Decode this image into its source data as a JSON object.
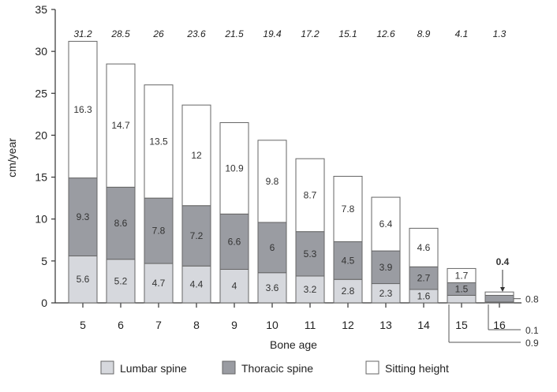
{
  "chart_data": {
    "type": "bar",
    "stacked": true,
    "categories": [
      "5",
      "6",
      "7",
      "8",
      "9",
      "10",
      "11",
      "12",
      "13",
      "14",
      "15",
      "16"
    ],
    "totals": [
      "31.2",
      "28.5",
      "26",
      "23.6",
      "21.5",
      "19.4",
      "17.2",
      "15.1",
      "12.6",
      "8.9",
      "4.1",
      "1.3"
    ],
    "series": [
      {
        "name": "Lumbar spine",
        "color": "#d6d8dd",
        "values": [
          5.6,
          5.2,
          4.7,
          4.4,
          4,
          3.6,
          3.2,
          2.8,
          2.3,
          1.6,
          0.9,
          0.1
        ],
        "labels": [
          "5.6",
          "5.2",
          "4.7",
          "4.4",
          "4",
          "3.6",
          "3.2",
          "2.8",
          "2.3",
          "1.6",
          "",
          ""
        ]
      },
      {
        "name": "Thoracic spine",
        "color": "#9a9ca2",
        "values": [
          9.3,
          8.6,
          7.8,
          7.2,
          6.6,
          6,
          5.3,
          4.5,
          3.9,
          2.7,
          1.5,
          0.8
        ],
        "labels": [
          "9.3",
          "8.6",
          "7.8",
          "7.2",
          "6.6",
          "6",
          "5.3",
          "4.5",
          "3.9",
          "2.7",
          "1.5",
          ""
        ]
      },
      {
        "name": "Sitting height",
        "color": "#ffffff",
        "values": [
          16.3,
          14.7,
          13.5,
          12,
          10.9,
          9.8,
          8.7,
          7.8,
          6.4,
          4.6,
          1.7,
          0.4
        ],
        "labels": [
          "16.3",
          "14.7",
          "13.5",
          "12",
          "10.9",
          "9.8",
          "8.7",
          "7.8",
          "6.4",
          "4.6",
          "1.7",
          ""
        ]
      }
    ],
    "callouts": {
      "top": "0.4",
      "side": "0.8",
      "lower_a": "0.1",
      "lower_b": "0.9"
    },
    "xlabel": "Bone age",
    "ylabel": "cm/year",
    "ylim": [
      0,
      35
    ],
    "yticks": [
      0,
      5,
      10,
      15,
      20,
      25,
      30,
      35
    ],
    "grid": false,
    "legend_position": "bottom"
  }
}
